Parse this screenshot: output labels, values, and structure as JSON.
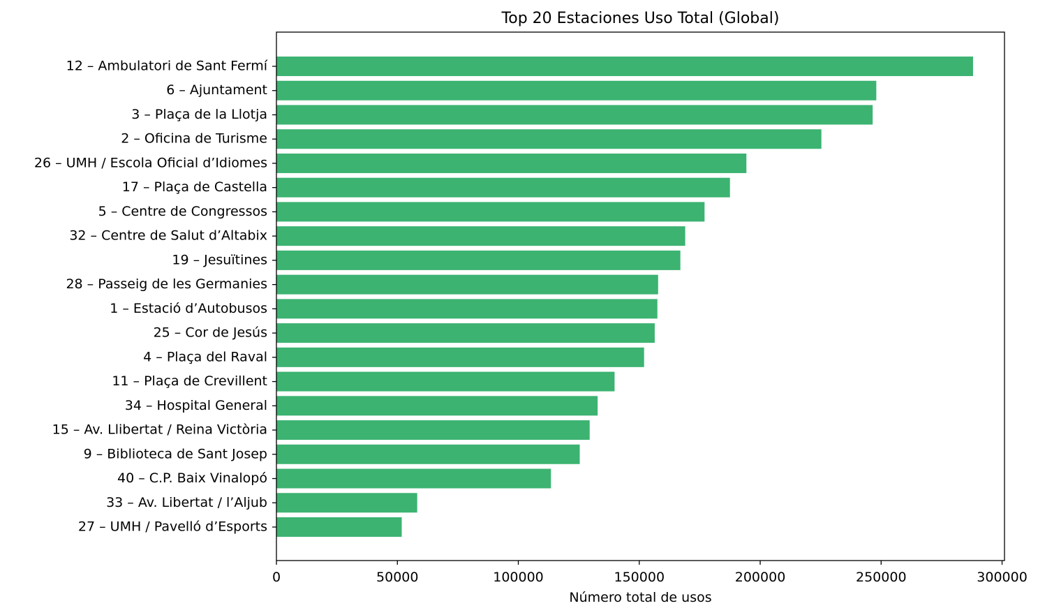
{
  "chart_data": {
    "type": "bar",
    "orientation": "horizontal",
    "title": "Top 20 Estaciones Uso Total (Global)",
    "xlabel": "Número total de usos",
    "ylabel": "",
    "xlim": [
      0,
      301000
    ],
    "xticks": [
      "0",
      "50000",
      "100000",
      "150000",
      "200000",
      "250000",
      "300000"
    ],
    "bar_color": "#3cb371",
    "grid": false,
    "categories": [
      "12 – Ambulatori de Sant Fermí",
      "6 – Ajuntament",
      "3 – Plaça de la Llotja",
      "2 – Oficina de Turisme",
      "26 – UMH / Escola Oficial d’Idiomes",
      "17 – Plaça de Castella",
      "5 – Centre de Congressos",
      "32 – Centre de Salut d’Altabix",
      "19 – Jesuïtines",
      "28 – Passeig de les Germanies",
      "1 – Estació d’Autobusos",
      "25 – Cor de Jesús",
      "4 – Plaça del Raval",
      "11 – Plaça de Crevillent",
      "34 – Hospital General",
      "15 – Av. Llibertat / Reina Victòria",
      "9 – Biblioteca de Sant Josep",
      "40 – C.P. Baix Vinalopó",
      "33 – Av. Libertat / l’Aljub",
      "27 – UMH / Pavelló d’Esports"
    ],
    "values": [
      288000,
      248000,
      246500,
      225300,
      194300,
      187500,
      177000,
      169000,
      167000,
      157800,
      157500,
      156400,
      152000,
      139800,
      132800,
      129500,
      125400,
      113500,
      58200,
      51800
    ]
  }
}
